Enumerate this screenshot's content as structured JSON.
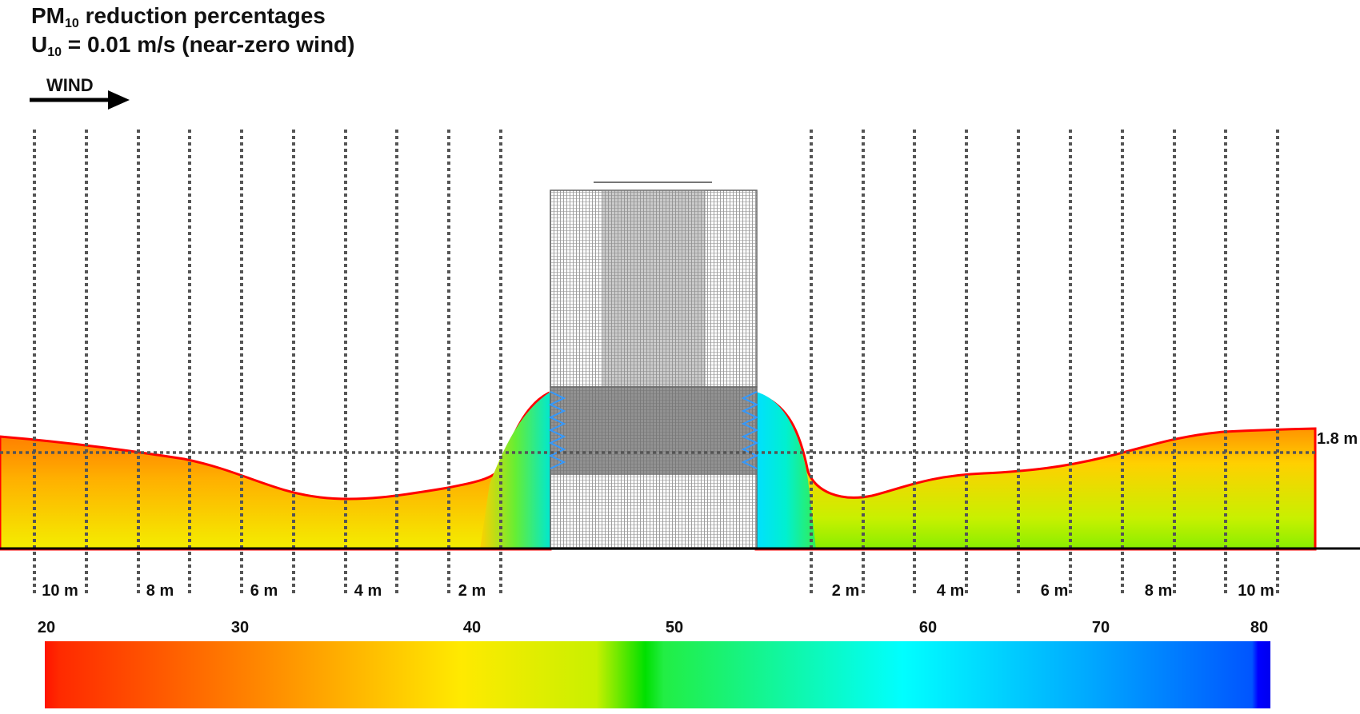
{
  "title": {
    "line1_main": "PM",
    "line1_sub": "10",
    "line1_rest": " reduction percentages",
    "line2_main": "U",
    "line2_sub": "10",
    "line2_rest": " = 0.01 m/s (near-zero wind)"
  },
  "wind_label": "WIND",
  "height_label": "1.8 m",
  "distance_labels_upwind": [
    "10 m",
    "8 m",
    "6 m",
    "4 m",
    "2 m"
  ],
  "distance_labels_downwind": [
    "2 m",
    "4 m",
    "6 m",
    "8 m",
    "10 m"
  ],
  "colorbar": {
    "ticks": [
      "20",
      "30",
      "40",
      "50",
      "60",
      "70",
      "80"
    ],
    "tick_values": [
      20,
      30,
      40,
      50,
      60,
      70,
      80
    ],
    "min": 20,
    "max": 80,
    "colors": [
      "#ff1a00",
      "#ff8c00",
      "#ffe800",
      "#00e000",
      "#00ffff",
      "#0066ff",
      "#0000ff"
    ]
  },
  "colors": {
    "grid_lines": "#555555",
    "barrier_mesh": "#7a7a7a",
    "plume_edge": "#ff0000",
    "ground": "#000000"
  }
}
